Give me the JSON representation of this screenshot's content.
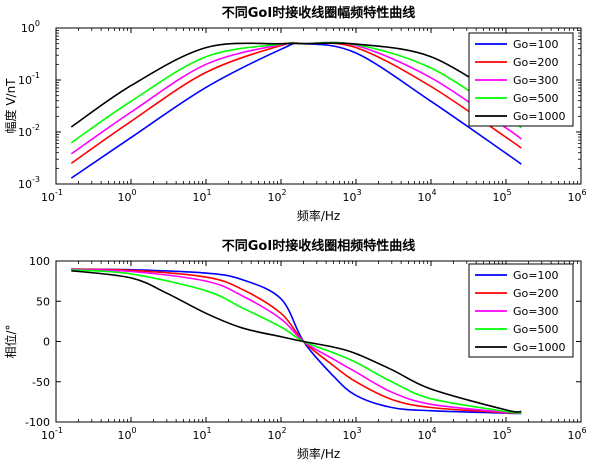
{
  "chart_data": [
    {
      "type": "line",
      "title": "不同GoI时接收线圈幅频特性曲线",
      "xlabel": "频率/Hz",
      "ylabel": "幅度 V/nT",
      "xscale": "log",
      "yscale": "log",
      "xlim": [
        0.1,
        1000000
      ],
      "ylim": [
        0.001,
        1
      ],
      "x_tick_labels": [
        {
          "base": "10",
          "exp": "-1"
        },
        {
          "base": "10",
          "exp": "0"
        },
        {
          "base": "10",
          "exp": "1"
        },
        {
          "base": "10",
          "exp": "2"
        },
        {
          "base": "10",
          "exp": "3"
        },
        {
          "base": "10",
          "exp": "4"
        },
        {
          "base": "10",
          "exp": "5"
        },
        {
          "base": "10",
          "exp": "6"
        }
      ],
      "y_tick_labels": [
        {
          "base": "10",
          "exp": "-3"
        },
        {
          "base": "10",
          "exp": "-2"
        },
        {
          "base": "10",
          "exp": "-1"
        },
        {
          "base": "10",
          "exp": "0"
        }
      ],
      "legend_position": "top-right",
      "series": [
        {
          "name": "Go=100",
          "color": "#0000ff",
          "x": [
            0.16,
            1,
            10,
            100,
            200,
            1000,
            10000,
            100000,
            160000
          ],
          "y": [
            0.0013,
            0.0078,
            0.072,
            0.39,
            0.5,
            0.33,
            0.039,
            0.0039,
            0.0024
          ]
        },
        {
          "name": "Go=200",
          "color": "#ff0000",
          "x": [
            0.16,
            1,
            10,
            100,
            200,
            1000,
            10000,
            100000,
            160000
          ],
          "y": [
            0.0025,
            0.016,
            0.14,
            0.46,
            0.5,
            0.42,
            0.075,
            0.0079,
            0.0049
          ]
        },
        {
          "name": "Go=300",
          "color": "#ff00ff",
          "x": [
            0.16,
            1,
            10,
            100,
            200,
            1000,
            10000,
            100000,
            160000
          ],
          "y": [
            0.0038,
            0.024,
            0.2,
            0.48,
            0.5,
            0.46,
            0.11,
            0.012,
            0.0073
          ]
        },
        {
          "name": "Go=500",
          "color": "#00ff00",
          "x": [
            0.16,
            1,
            10,
            100,
            200,
            1000,
            10000,
            100000,
            160000
          ],
          "y": [
            0.0062,
            0.039,
            0.28,
            0.49,
            0.5,
            0.48,
            0.17,
            0.02,
            0.012
          ]
        },
        {
          "name": "Go=1000",
          "color": "#000000",
          "x": [
            0.16,
            1,
            10,
            100,
            200,
            1000,
            10000,
            100000,
            160000
          ],
          "y": [
            0.0125,
            0.078,
            0.42,
            0.5,
            0.5,
            0.49,
            0.28,
            0.039,
            0.025
          ]
        }
      ]
    },
    {
      "type": "line",
      "title": "不同GoI时接收线圈相频特性曲线",
      "xlabel": "频率/Hz",
      "ylabel": "相位/°",
      "xscale": "log",
      "xlim": [
        0.1,
        1000000
      ],
      "ylim": [
        -100,
        100
      ],
      "x_tick_labels": [
        {
          "base": "10",
          "exp": "-1"
        },
        {
          "base": "10",
          "exp": "0"
        },
        {
          "base": "10",
          "exp": "1"
        },
        {
          "base": "10",
          "exp": "2"
        },
        {
          "base": "10",
          "exp": "3"
        },
        {
          "base": "10",
          "exp": "4"
        },
        {
          "base": "10",
          "exp": "5"
        },
        {
          "base": "10",
          "exp": "6"
        }
      ],
      "y_tick_labels": [
        "100",
        "50",
        "0",
        "-50",
        "-100"
      ],
      "legend_position": "top-right",
      "series": [
        {
          "name": "Go=100",
          "color": "#0000ff",
          "x": [
            0.16,
            1,
            10,
            30,
            100,
            200,
            500,
            1000,
            3000,
            10000,
            100000,
            160000
          ],
          "y": [
            89.9,
            89.2,
            85,
            77,
            53,
            0,
            -43,
            -67,
            -82,
            -86,
            -89,
            -89.5
          ]
        },
        {
          "name": "Go=200",
          "color": "#ff0000",
          "x": [
            0.16,
            1,
            10,
            30,
            100,
            200,
            500,
            1000,
            3000,
            10000,
            100000,
            160000
          ],
          "y": [
            89.7,
            88.5,
            80,
            65,
            35,
            0,
            -30,
            -50,
            -72,
            -82,
            -88.5,
            -89
          ]
        },
        {
          "name": "Go=300",
          "color": "#ff00ff",
          "x": [
            0.16,
            1,
            10,
            30,
            100,
            200,
            500,
            1000,
            3000,
            10000,
            100000,
            160000
          ],
          "y": [
            89.5,
            87,
            75,
            57,
            28,
            0,
            -22,
            -38,
            -63,
            -78,
            -88,
            -89
          ]
        },
        {
          "name": "Go=500",
          "color": "#00ff00",
          "x": [
            0.16,
            1,
            10,
            30,
            100,
            200,
            500,
            1000,
            3000,
            10000,
            100000,
            160000
          ],
          "y": [
            89,
            84,
            63,
            42,
            18,
            0,
            -14,
            -26,
            -50,
            -71,
            -87,
            -88.5
          ]
        },
        {
          "name": "Go=1000",
          "color": "#000000",
          "x": [
            0.16,
            1,
            3,
            10,
            30,
            100,
            200,
            500,
            1000,
            3000,
            10000,
            100000,
            160000
          ],
          "y": [
            88,
            79,
            60,
            35,
            17,
            6,
            0,
            -7,
            -15,
            -35,
            -59,
            -85,
            -87
          ]
        }
      ]
    }
  ]
}
